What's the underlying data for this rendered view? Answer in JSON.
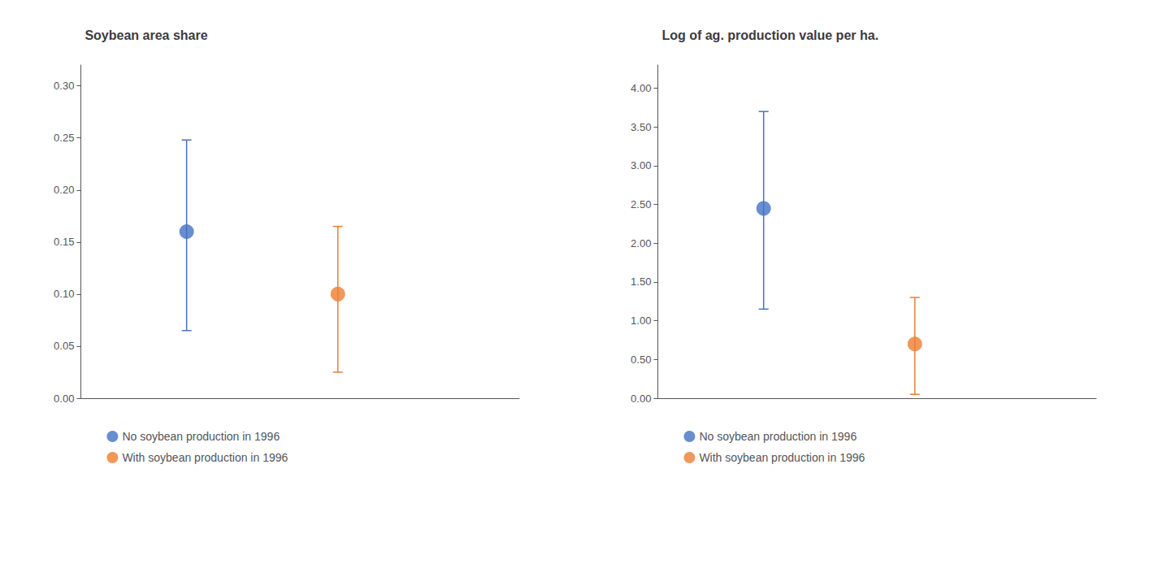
{
  "chart_data": [
    {
      "type": "scatter",
      "title": "Soybean area share",
      "marker": "circle",
      "series": [
        {
          "name": "No soybean production in 1996",
          "color": "#4472C4",
          "x": [
            1
          ],
          "values": [
            0.16
          ],
          "error_lower": [
            0.095
          ],
          "error_upper": [
            0.088
          ]
        },
        {
          "name": "With soybean production in 1996",
          "color": "#ED7D31",
          "x": [
            2
          ],
          "values": [
            0.1
          ],
          "error_lower": [
            0.075
          ],
          "error_upper": [
            0.065
          ]
        }
      ],
      "xlim": [
        0.3,
        3.2
      ],
      "ylim": [
        0.0,
        0.32
      ],
      "yticks": [
        {
          "value": 0.0,
          "label": "0.00"
        },
        {
          "value": 0.05,
          "label": "0.05"
        },
        {
          "value": 0.1,
          "label": "0.10"
        },
        {
          "value": 0.15,
          "label": "0.15"
        },
        {
          "value": 0.2,
          "label": "0.20"
        },
        {
          "value": 0.25,
          "label": "0.25"
        },
        {
          "value": 0.3,
          "label": "0.30"
        }
      ],
      "tick_labels": "y",
      "grid": false,
      "legend": "bottom"
    },
    {
      "type": "scatter",
      "title": "Log of ag. production value per ha.",
      "marker": "circle",
      "series": [
        {
          "name": "No soybean production in 1996",
          "color": "#4472C4",
          "x": [
            1
          ],
          "values": [
            2.45
          ],
          "error_lower": [
            1.3
          ],
          "error_upper": [
            1.25
          ]
        },
        {
          "name": "With soybean production in 1996",
          "color": "#ED7D31",
          "x": [
            2
          ],
          "values": [
            0.7
          ],
          "error_lower": [
            0.65
          ],
          "error_upper": [
            0.6
          ]
        }
      ],
      "xlim": [
        0.3,
        3.2
      ],
      "ylim": [
        0.0,
        4.3
      ],
      "yticks": [
        {
          "value": 0.0,
          "label": "0.00"
        },
        {
          "value": 0.5,
          "label": "0.50"
        },
        {
          "value": 1.0,
          "label": "1.00"
        },
        {
          "value": 1.5,
          "label": "1.50"
        },
        {
          "value": 2.0,
          "label": "2.00"
        },
        {
          "value": 2.5,
          "label": "2.50"
        },
        {
          "value": 3.0,
          "label": "3.00"
        },
        {
          "value": 3.5,
          "label": "3.50"
        },
        {
          "value": 4.0,
          "label": "4.00"
        }
      ],
      "tick_labels": "y",
      "grid": false,
      "legend": "bottom"
    }
  ]
}
